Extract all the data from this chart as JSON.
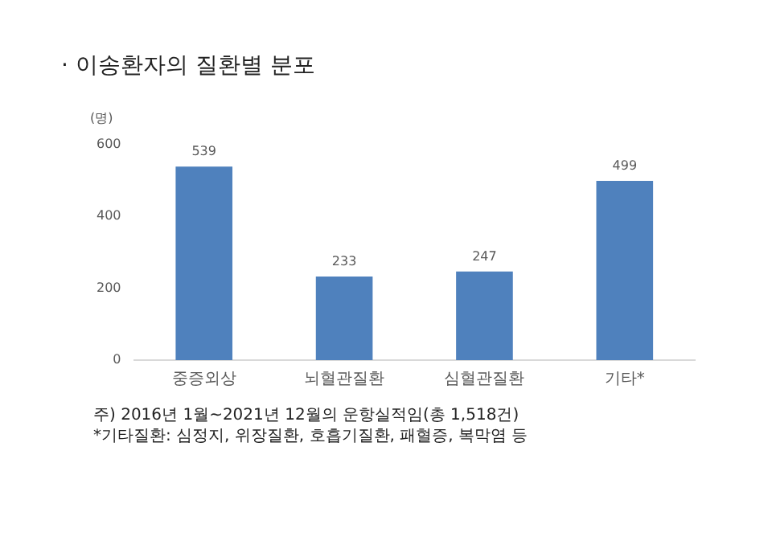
{
  "chart_data": {
    "type": "bar",
    "title": "· 이송환자의 질환별 분포",
    "ylabel": "(명)",
    "categories": [
      "중증외상",
      "뇌혈관질환",
      "심혈관질환",
      "기타*"
    ],
    "values": [
      539,
      233,
      247,
      499
    ],
    "color": "#4f81bd",
    "ylim": [
      0,
      600
    ],
    "yticks": [
      0,
      200,
      400,
      600
    ],
    "grid": false,
    "legend": false,
    "data_labels": true,
    "annotations": [
      "주) 2016년 1월~2021년 12월의 운항실적임(총 1,518건)",
      "*기타질환: 심정지, 위장질환, 호흡기질환, 패혈증, 복막염 등"
    ]
  }
}
